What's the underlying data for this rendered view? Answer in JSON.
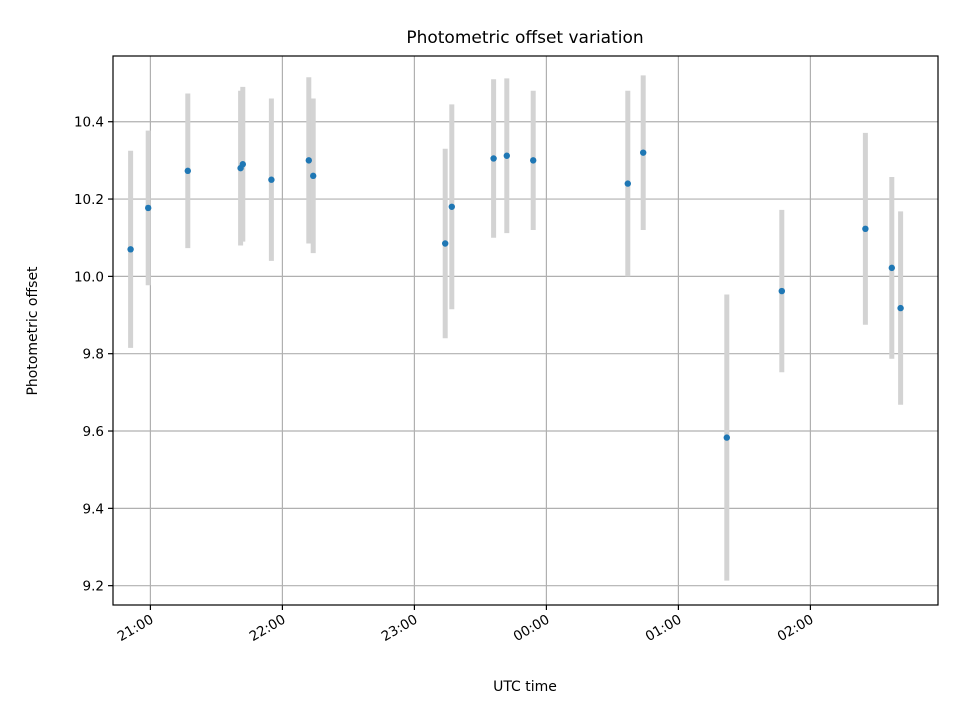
{
  "chart_data": {
    "type": "scatter",
    "title": "Photometric offset variation",
    "xlabel": "UTC time",
    "ylabel": "Photometric offset",
    "grid": true,
    "x_axis": {
      "kind": "time",
      "range": [
        "20:43",
        "02:58"
      ],
      "ticks": [
        "21:00",
        "22:00",
        "23:00",
        "00:00",
        "01:00",
        "02:00"
      ],
      "tick_times": [
        "21:00",
        "22:00",
        "23:00",
        "00:00",
        "01:00",
        "02:00"
      ]
    },
    "y_axis": {
      "range": [
        9.15,
        10.57
      ],
      "ticks": [
        "9.2",
        "9.4",
        "9.6",
        "9.8",
        "10.0",
        "10.2",
        "10.4"
      ],
      "tick_values": [
        9.2,
        9.4,
        9.6,
        9.8,
        10.0,
        10.2,
        10.4
      ]
    },
    "colors": {
      "point": "#1f77b4",
      "errorbar": "#d3d3d3",
      "grid": "#b0b0b0"
    },
    "points": [
      {
        "time": "20:51",
        "y": 10.07,
        "yerr": 0.255
      },
      {
        "time": "20:59",
        "y": 10.177,
        "yerr": 0.2
      },
      {
        "time": "21:17",
        "y": 10.273,
        "yerr": 0.2
      },
      {
        "time": "21:41",
        "y": 10.28,
        "yerr": 0.2
      },
      {
        "time": "21:42",
        "y": 10.29,
        "yerr": 0.2
      },
      {
        "time": "21:55",
        "y": 10.25,
        "yerr": 0.21
      },
      {
        "time": "22:12",
        "y": 10.3,
        "yerr": 0.215
      },
      {
        "time": "22:14",
        "y": 10.26,
        "yerr": 0.2
      },
      {
        "time": "23:14",
        "y": 10.085,
        "yerr": 0.245
      },
      {
        "time": "23:17",
        "y": 10.18,
        "yerr": 0.265
      },
      {
        "time": "23:36",
        "y": 10.305,
        "yerr": 0.205
      },
      {
        "time": "23:42",
        "y": 10.312,
        "yerr": 0.2
      },
      {
        "time": "23:54",
        "y": 10.3,
        "yerr": 0.18
      },
      {
        "time": "00:37",
        "y": 10.24,
        "yerr": 0.24
      },
      {
        "time": "00:44",
        "y": 10.32,
        "yerr": 0.2
      },
      {
        "time": "01:22",
        "y": 9.583,
        "yerr": 0.37
      },
      {
        "time": "01:47",
        "y": 9.962,
        "yerr": 0.21
      },
      {
        "time": "02:25",
        "y": 10.123,
        "yerr": 0.248
      },
      {
        "time": "02:37",
        "y": 10.022,
        "yerr": 0.235
      },
      {
        "time": "02:41",
        "y": 9.918,
        "yerr": 0.25
      }
    ]
  }
}
